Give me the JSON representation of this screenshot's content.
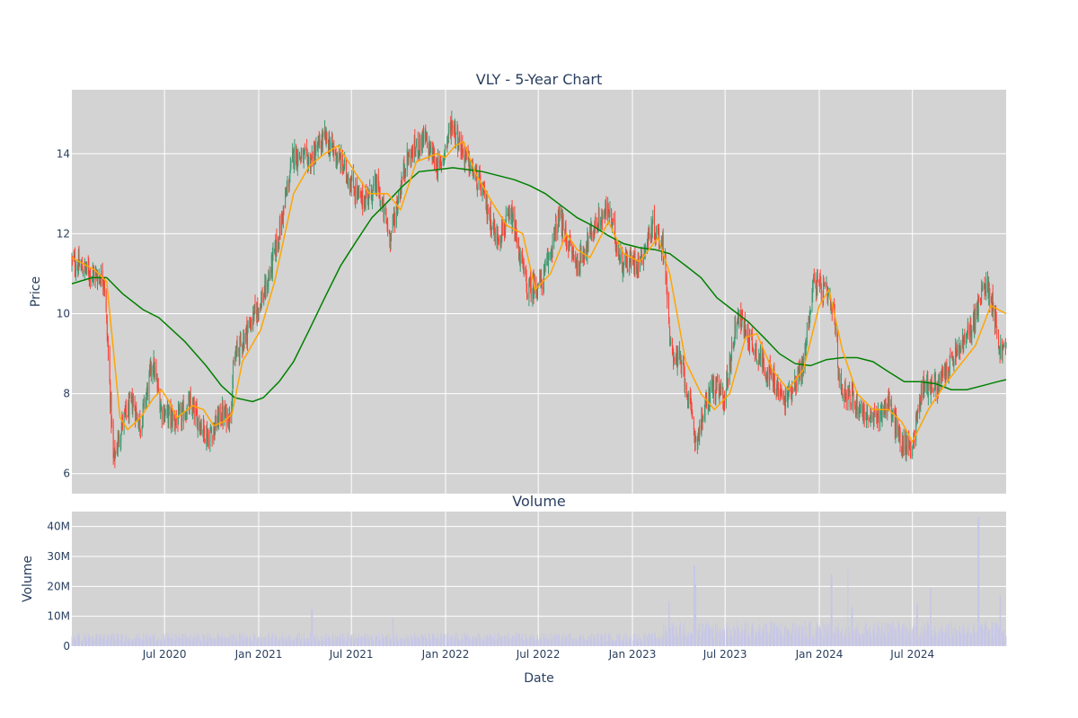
{
  "title": "VLY - 5-Year Chart",
  "volume_title": "Volume",
  "colors": {
    "panel_bg": "#d3d3d3",
    "grid": "#ffffff",
    "candle_up": "#3d9970",
    "candle_down": "#ff4136",
    "ma_short": "#ffa500",
    "ma_long": "#008000",
    "volume_bar": "#c6c6e8"
  },
  "chart_data": {
    "type": "candlestick",
    "ticker": "VLY",
    "price_axis": {
      "label": "Price",
      "ylim": [
        5.5,
        15.6
      ],
      "ticks": [
        6,
        8,
        10,
        12,
        14
      ],
      "tick_labels": [
        "6",
        "8",
        "10",
        "12",
        "14"
      ]
    },
    "volume_axis": {
      "label": "Volume",
      "ylim": [
        0,
        45000000
      ],
      "ticks": [
        0,
        10000000,
        20000000,
        30000000,
        40000000
      ],
      "tick_labels": [
        "0",
        "10M",
        "20M",
        "30M",
        "40M"
      ]
    },
    "x_axis": {
      "label": "Date",
      "range": [
        "2020-01-02",
        "2024-12-31"
      ],
      "ticks": [
        "2020-07-01",
        "2021-01-01",
        "2021-07-01",
        "2022-01-01",
        "2022-07-01",
        "2023-01-01",
        "2023-07-01",
        "2024-01-01",
        "2024-07-01"
      ],
      "tick_labels": [
        "Jul 2020",
        "Jan 2021",
        "Jul 2021",
        "Jan 2022",
        "Jul 2022",
        "Jan 2023",
        "Jul 2023",
        "Jan 2024",
        "Jul 2024"
      ]
    },
    "price_trend": [
      [
        "2020-01-02",
        11.3
      ],
      [
        "2020-02-10",
        11.0
      ],
      [
        "2020-03-05",
        10.9
      ],
      [
        "2020-03-15",
        8.5
      ],
      [
        "2020-03-23",
        6.3
      ],
      [
        "2020-04-10",
        7.3
      ],
      [
        "2020-04-30",
        7.8
      ],
      [
        "2020-05-15",
        7.2
      ],
      [
        "2020-06-08",
        8.8
      ],
      [
        "2020-06-25",
        7.6
      ],
      [
        "2020-07-25",
        7.3
      ],
      [
        "2020-08-20",
        7.7
      ],
      [
        "2020-09-25",
        6.9
      ],
      [
        "2020-10-20",
        7.5
      ],
      [
        "2020-11-05",
        7.4
      ],
      [
        "2020-11-15",
        8.9
      ],
      [
        "2020-12-10",
        9.6
      ],
      [
        "2021-01-15",
        10.6
      ],
      [
        "2021-02-10",
        12.0
      ],
      [
        "2021-03-10",
        14.0
      ],
      [
        "2021-04-10",
        13.8
      ],
      [
        "2021-05-10",
        14.4
      ],
      [
        "2021-06-10",
        13.8
      ],
      [
        "2021-07-20",
        12.8
      ],
      [
        "2021-08-20",
        13.2
      ],
      [
        "2021-09-15",
        11.9
      ],
      [
        "2021-10-15",
        13.8
      ],
      [
        "2021-11-20",
        14.4
      ],
      [
        "2021-12-20",
        13.6
      ],
      [
        "2022-01-14",
        14.8
      ],
      [
        "2022-02-05",
        14.0
      ],
      [
        "2022-03-10",
        13.2
      ],
      [
        "2022-04-10",
        11.9
      ],
      [
        "2022-05-10",
        12.4
      ],
      [
        "2022-06-10",
        10.6
      ],
      [
        "2022-07-10",
        10.8
      ],
      [
        "2022-08-10",
        12.4
      ],
      [
        "2022-09-15",
        11.2
      ],
      [
        "2022-10-20",
        12.2
      ],
      [
        "2022-11-15",
        12.6
      ],
      [
        "2022-12-10",
        11.3
      ],
      [
        "2023-01-15",
        11.3
      ],
      [
        "2023-02-10",
        12.2
      ],
      [
        "2023-03-05",
        11.6
      ],
      [
        "2023-03-15",
        9.2
      ],
      [
        "2023-04-10",
        8.6
      ],
      [
        "2023-05-05",
        6.8
      ],
      [
        "2023-06-05",
        8.2
      ],
      [
        "2023-06-30",
        7.9
      ],
      [
        "2023-07-25",
        10.0
      ],
      [
        "2023-08-25",
        9.2
      ],
      [
        "2023-09-25",
        8.5
      ],
      [
        "2023-10-25",
        7.8
      ],
      [
        "2023-12-01",
        8.7
      ],
      [
        "2023-12-20",
        10.8
      ],
      [
        "2024-01-15",
        10.5
      ],
      [
        "2024-01-31",
        9.9
      ],
      [
        "2024-02-10",
        8.2
      ],
      [
        "2024-03-10",
        7.8
      ],
      [
        "2024-04-15",
        7.3
      ],
      [
        "2024-05-15",
        7.8
      ],
      [
        "2024-06-10",
        6.7
      ],
      [
        "2024-07-01",
        6.7
      ],
      [
        "2024-07-20",
        8.2
      ],
      [
        "2024-08-20",
        8.2
      ],
      [
        "2024-09-20",
        8.9
      ],
      [
        "2024-10-20",
        9.5
      ],
      [
        "2024-11-10",
        10.3
      ],
      [
        "2024-11-20",
        10.8
      ],
      [
        "2024-12-05",
        10.3
      ],
      [
        "2024-12-18",
        9.1
      ],
      [
        "2024-12-31",
        9.1
      ]
    ],
    "ma_short": [
      [
        "2020-01-02",
        11.4
      ],
      [
        "2020-02-15",
        11.1
      ],
      [
        "2020-03-10",
        10.8
      ],
      [
        "2020-04-05",
        7.4
      ],
      [
        "2020-04-20",
        7.1
      ],
      [
        "2020-05-15",
        7.4
      ],
      [
        "2020-06-10",
        7.9
      ],
      [
        "2020-06-25",
        8.1
      ],
      [
        "2020-07-10",
        7.8
      ],
      [
        "2020-07-25",
        7.4
      ],
      [
        "2020-08-25",
        7.7
      ],
      [
        "2020-09-15",
        7.6
      ],
      [
        "2020-10-05",
        7.2
      ],
      [
        "2020-10-25",
        7.3
      ],
      [
        "2020-11-10",
        7.5
      ],
      [
        "2020-11-30",
        8.8
      ],
      [
        "2021-01-05",
        9.6
      ],
      [
        "2021-02-01",
        10.8
      ],
      [
        "2021-03-10",
        13.0
      ],
      [
        "2021-04-10",
        13.7
      ],
      [
        "2021-05-10",
        14.0
      ],
      [
        "2021-06-05",
        14.2
      ],
      [
        "2021-07-10",
        13.5
      ],
      [
        "2021-08-05",
        13.0
      ],
      [
        "2021-09-10",
        13.0
      ],
      [
        "2021-10-05",
        12.6
      ],
      [
        "2021-11-05",
        13.8
      ],
      [
        "2021-12-15",
        14.0
      ],
      [
        "2021-12-31",
        13.9
      ],
      [
        "2022-01-20",
        14.2
      ],
      [
        "2022-02-05",
        14.3
      ],
      [
        "2022-03-01",
        13.5
      ],
      [
        "2022-04-01",
        12.8
      ],
      [
        "2022-05-01",
        12.2
      ],
      [
        "2022-06-01",
        12.0
      ],
      [
        "2022-06-25",
        10.6
      ],
      [
        "2022-07-25",
        11.0
      ],
      [
        "2022-08-25",
        12.0
      ],
      [
        "2022-09-15",
        11.6
      ],
      [
        "2022-10-10",
        11.4
      ],
      [
        "2022-11-15",
        12.3
      ],
      [
        "2022-12-15",
        11.5
      ],
      [
        "2023-01-15",
        11.3
      ],
      [
        "2023-02-20",
        11.9
      ],
      [
        "2023-03-15",
        11.0
      ],
      [
        "2023-04-15",
        8.8
      ],
      [
        "2023-05-15",
        8.0
      ],
      [
        "2023-06-10",
        7.6
      ],
      [
        "2023-07-10",
        8.0
      ],
      [
        "2023-08-10",
        9.4
      ],
      [
        "2023-09-01",
        9.5
      ],
      [
        "2023-10-01",
        8.6
      ],
      [
        "2023-11-01",
        8.1
      ],
      [
        "2023-12-01",
        8.6
      ],
      [
        "2024-01-01",
        10.2
      ],
      [
        "2024-01-20",
        10.6
      ],
      [
        "2024-02-15",
        9.1
      ],
      [
        "2024-03-15",
        8.0
      ],
      [
        "2024-04-15",
        7.6
      ],
      [
        "2024-05-15",
        7.6
      ],
      [
        "2024-06-10",
        7.3
      ],
      [
        "2024-07-01",
        6.8
      ],
      [
        "2024-08-01",
        7.6
      ],
      [
        "2024-09-01",
        8.2
      ],
      [
        "2024-10-01",
        8.7
      ],
      [
        "2024-11-01",
        9.2
      ],
      [
        "2024-12-01",
        10.2
      ],
      [
        "2024-12-31",
        10.0
      ]
    ],
    "ma_long": [
      [
        "2020-01-02",
        10.75
      ],
      [
        "2020-02-10",
        10.9
      ],
      [
        "2020-03-10",
        10.9
      ],
      [
        "2020-04-10",
        10.5
      ],
      [
        "2020-05-20",
        10.1
      ],
      [
        "2020-06-20",
        9.9
      ],
      [
        "2020-08-10",
        9.3
      ],
      [
        "2020-09-20",
        8.7
      ],
      [
        "2020-10-20",
        8.2
      ],
      [
        "2020-11-15",
        7.9
      ],
      [
        "2020-12-20",
        7.8
      ],
      [
        "2021-01-10",
        7.9
      ],
      [
        "2021-02-10",
        8.3
      ],
      [
        "2021-03-10",
        8.8
      ],
      [
        "2021-04-10",
        9.6
      ],
      [
        "2021-05-10",
        10.4
      ],
      [
        "2021-06-10",
        11.2
      ],
      [
        "2021-07-10",
        11.8
      ],
      [
        "2021-08-10",
        12.4
      ],
      [
        "2021-09-10",
        12.8
      ],
      [
        "2021-10-10",
        13.2
      ],
      [
        "2021-11-10",
        13.55
      ],
      [
        "2021-12-15",
        13.6
      ],
      [
        "2022-01-15",
        13.65
      ],
      [
        "2022-02-15",
        13.6
      ],
      [
        "2022-03-15",
        13.55
      ],
      [
        "2022-04-15",
        13.45
      ],
      [
        "2022-05-15",
        13.35
      ],
      [
        "2022-06-15",
        13.2
      ],
      [
        "2022-07-15",
        13.0
      ],
      [
        "2022-08-15",
        12.7
      ],
      [
        "2022-09-15",
        12.4
      ],
      [
        "2022-10-15",
        12.2
      ],
      [
        "2022-11-15",
        11.95
      ],
      [
        "2022-12-15",
        11.75
      ],
      [
        "2023-01-15",
        11.65
      ],
      [
        "2023-02-15",
        11.6
      ],
      [
        "2023-03-15",
        11.5
      ],
      [
        "2023-04-15",
        11.2
      ],
      [
        "2023-05-15",
        10.9
      ],
      [
        "2023-06-15",
        10.4
      ],
      [
        "2023-07-15",
        10.1
      ],
      [
        "2023-08-15",
        9.8
      ],
      [
        "2023-09-15",
        9.4
      ],
      [
        "2023-10-15",
        9.0
      ],
      [
        "2023-11-15",
        8.75
      ],
      [
        "2023-12-15",
        8.7
      ],
      [
        "2024-01-15",
        8.85
      ],
      [
        "2024-02-15",
        8.9
      ],
      [
        "2024-03-15",
        8.9
      ],
      [
        "2024-04-15",
        8.8
      ],
      [
        "2024-05-15",
        8.55
      ],
      [
        "2024-06-15",
        8.3
      ],
      [
        "2024-07-15",
        8.3
      ],
      [
        "2024-08-15",
        8.25
      ],
      [
        "2024-09-15",
        8.1
      ],
      [
        "2024-10-15",
        8.1
      ],
      [
        "2024-11-15",
        8.2
      ],
      [
        "2024-12-15",
        8.3
      ],
      [
        "2024-12-31",
        8.35
      ]
    ],
    "volume_spikes": [
      [
        "2021-04-15",
        12500000
      ],
      [
        "2021-09-20",
        9500000
      ],
      [
        "2023-03-13",
        15000000
      ],
      [
        "2023-05-02",
        27000000
      ],
      [
        "2023-05-05",
        21000000
      ],
      [
        "2024-01-25",
        24000000
      ],
      [
        "2024-02-25",
        26000000
      ],
      [
        "2024-03-05",
        13000000
      ],
      [
        "2024-07-10",
        14000000
      ],
      [
        "2024-08-05",
        19500000
      ],
      [
        "2024-11-07",
        43000000
      ],
      [
        "2024-12-20",
        17000000
      ]
    ]
  }
}
